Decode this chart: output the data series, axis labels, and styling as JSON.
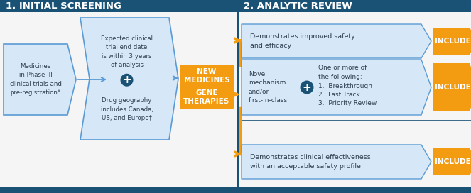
{
  "fig_width": 6.63,
  "fig_height": 2.72,
  "dpi": 100,
  "bg_color": "#f5f5f5",
  "header_bg": "#1a5276",
  "header_text_color": "#ffffff",
  "box_border_color": "#5b9bd5",
  "box_bg_color": "#d6e8f7",
  "orange_color": "#f39c12",
  "text_color": "#2c3e50",
  "dark_blue": "#1a5276",
  "divider_color": "#1a5276",
  "section1_title": "1. INITIAL SCREENING",
  "section2_title": "2. ANALYTIC REVIEW",
  "box1_text": "Medicines\nin Phase III\nclinical trials and\npre-registration*",
  "box2_text": "Expected clinical\ntrial end date\nis within 3 years\nof analysis\n\n➕\n\nDrug geography\nincludes Canada,\nUS, and Europe†",
  "center_box1": "NEW\nMEDICINES",
  "center_box2": "GENE\nTHERAPIES",
  "row1_text": "Demonstrates improved safety\nand efficacy",
  "row2a_text": "Novel\nmechanism\nand/or\nfirst-in-class",
  "row2b_text": "One or more of\nthe following:\n1.  Breakthrough\n2.  Fast Track\n3.  Priority Review",
  "row3_text": "Demonstrates clinical effectiveness\nwith an acceptable safety profile",
  "include_label": "INCLUDE"
}
